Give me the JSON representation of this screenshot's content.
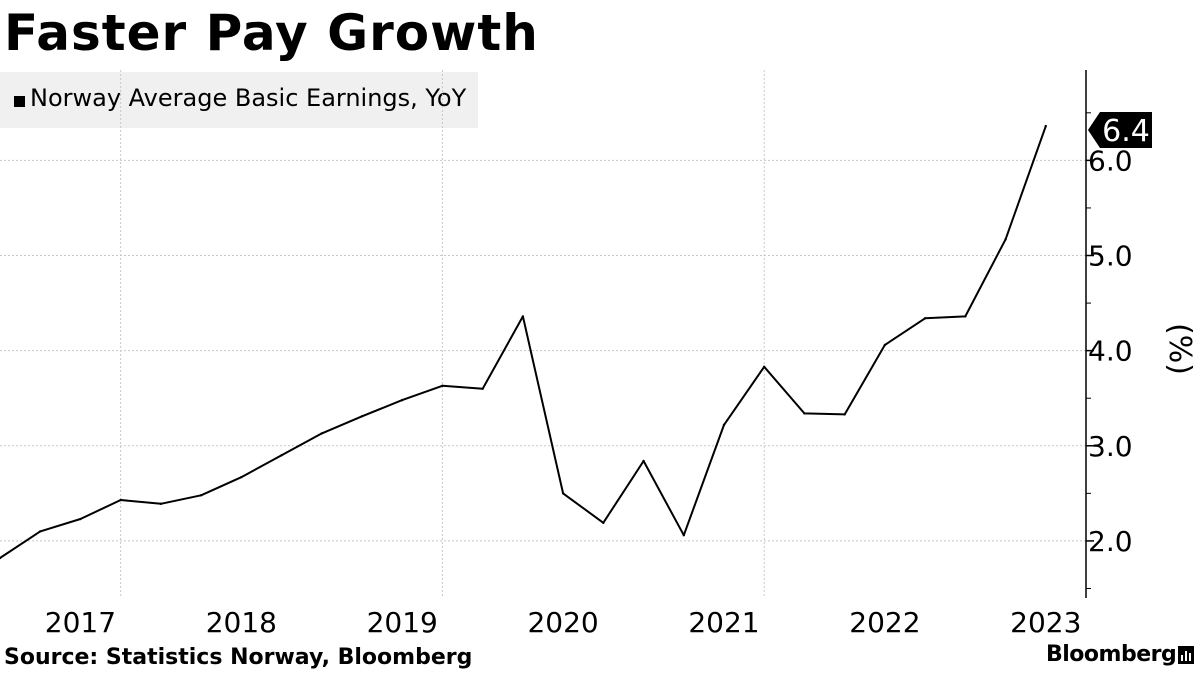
{
  "title": "Faster Pay Growth",
  "source": "Source: Statistics Norway, Bloomberg",
  "brand": "Bloomberg",
  "brand_icon": "bloomberg-terminal-icon",
  "colors": {
    "line": "#000000",
    "grid": "#c8c8c8",
    "legend_bg": "#f0f0f0",
    "callout_bg": "#000000",
    "callout_text": "#ffffff"
  },
  "chart_data": {
    "type": "line",
    "title": "Faster Pay Growth",
    "ylabel": "(%)",
    "ylim": [
      1.4,
      6.95
    ],
    "xlim": [
      2016.75,
      2023.5
    ],
    "y_ticks": [
      2.0,
      3.0,
      4.0,
      5.0,
      6.0
    ],
    "y_tick_labels": [
      "2.0",
      "3.0",
      "4.0",
      "5.0",
      "6.0"
    ],
    "x_ticks": [
      2017,
      2018,
      2019,
      2020,
      2021,
      2022,
      2023
    ],
    "x_tick_labels": [
      "2017",
      "2018",
      "2019",
      "2020",
      "2021",
      "2022",
      "2023"
    ],
    "y_axis_side": "right",
    "grid": true,
    "legend_position": "top-left",
    "last_value_label": "6.4",
    "series": [
      {
        "name": "Norway Average Basic Earnings, YoY",
        "x": [
          2016.75,
          2017.0,
          2017.25,
          2017.5,
          2017.75,
          2018.0,
          2018.25,
          2018.5,
          2018.75,
          2019.0,
          2019.25,
          2019.5,
          2019.75,
          2020.0,
          2020.25,
          2020.5,
          2020.75,
          2021.0,
          2021.25,
          2021.5,
          2021.75,
          2022.0,
          2022.25,
          2022.5,
          2022.75,
          2023.0,
          2023.25
        ],
        "values": [
          1.82,
          2.1,
          2.23,
          2.43,
          2.39,
          2.48,
          2.67,
          2.9,
          3.13,
          3.31,
          3.48,
          3.63,
          3.6,
          4.36,
          2.5,
          2.19,
          2.84,
          2.06,
          3.22,
          3.83,
          3.34,
          3.33,
          4.06,
          4.34,
          4.36,
          5.17,
          6.36
        ]
      }
    ]
  }
}
